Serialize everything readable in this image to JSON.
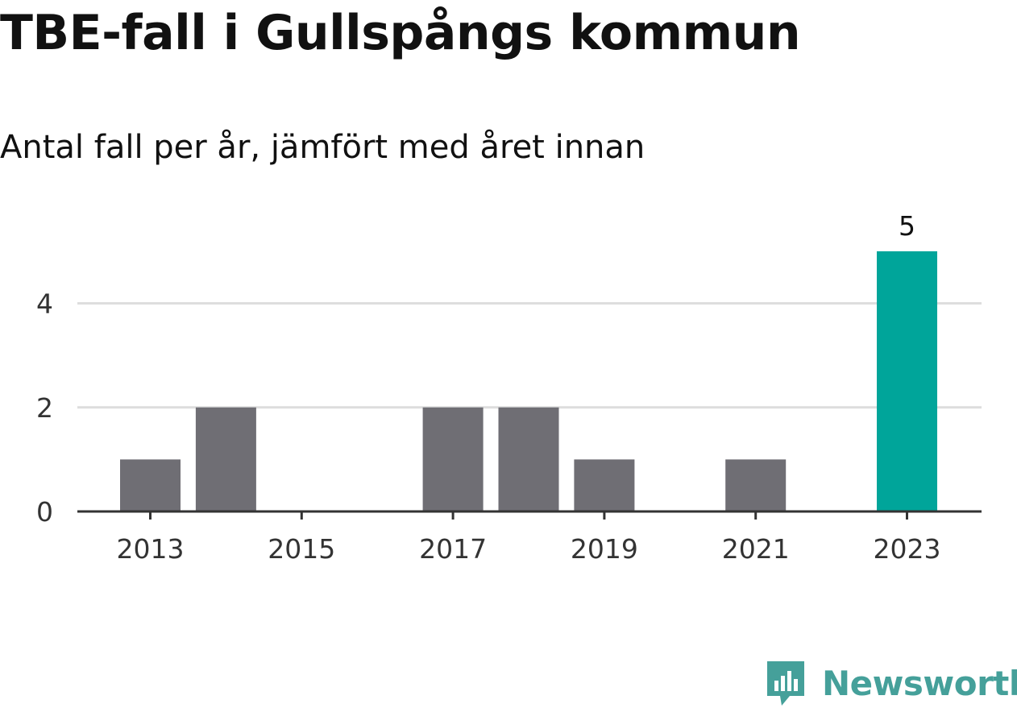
{
  "title": "TBE-fall i Gullspångs kommun",
  "subtitle": "Antal fall per år, jämfört med året innan",
  "brand": {
    "name": "Newsworthy",
    "icon": "newsworthy-logo-icon",
    "color": "#45a09a"
  },
  "colors": {
    "bar": "#6f6e74",
    "highlight": "#00a59a",
    "grid": "#dddddd",
    "axis": "#333333"
  },
  "chart_data": {
    "type": "bar",
    "categories": [
      "2013",
      "2014",
      "2015",
      "2016",
      "2017",
      "2018",
      "2019",
      "2020",
      "2021",
      "2022",
      "2023"
    ],
    "values": [
      1,
      2,
      0,
      0,
      2,
      2,
      1,
      0,
      1,
      0,
      5
    ],
    "highlight_index": 10,
    "data_labels": {
      "2023": "5"
    },
    "xticks": [
      "2013",
      "2015",
      "2017",
      "2019",
      "2021",
      "2023"
    ],
    "yticks": [
      0,
      2,
      4
    ],
    "ylim": [
      0,
      5.25
    ],
    "grid": true,
    "xlabel": "",
    "ylabel": ""
  }
}
